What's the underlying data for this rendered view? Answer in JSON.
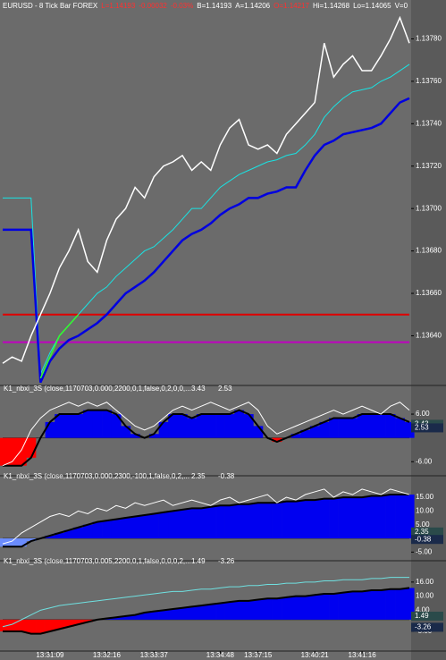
{
  "chart_data": [
    {
      "type": "line",
      "header": [
        {
          "text": "EURUSD - 8 Tick Bar  FOREX",
          "color": "#ffffff"
        },
        {
          "text": "L=1.14193",
          "color": "#ff3030"
        },
        {
          "text": "-0.00032",
          "color": "#ff3030"
        },
        {
          "text": "-0.03%",
          "color": "#ff3030"
        },
        {
          "text": "B=1.14193",
          "color": "#ffffff"
        },
        {
          "text": "A=1.14206",
          "color": "#ffffff"
        },
        {
          "text": "O=1.14217",
          "color": "#ff3030"
        },
        {
          "text": "Hi=1.14268",
          "color": "#ffffff"
        },
        {
          "text": "Lo=1.14065",
          "color": "#ffffff"
        },
        {
          "text": "V=0",
          "color": "#ffffff"
        }
      ],
      "xlim": [
        0,
        43
      ],
      "ylim": [
        1.13617,
        1.13792
      ],
      "yticks": [
        {
          "value": 1.1378,
          "label": "1.13780"
        },
        {
          "value": 1.1376,
          "label": "1.13760"
        },
        {
          "value": 1.1374,
          "label": "1.13740"
        },
        {
          "value": 1.1372,
          "label": "1.13720"
        },
        {
          "value": 1.137,
          "label": "1.13700"
        },
        {
          "value": 1.1368,
          "label": "1.13680"
        },
        {
          "value": 1.1366,
          "label": "1.13660"
        },
        {
          "value": 1.1364,
          "label": "1.13640"
        }
      ],
      "hlines": [
        {
          "value": 1.1365,
          "color": "#e00000"
        },
        {
          "value": 1.13637,
          "color": "#c000c0"
        }
      ],
      "series": [
        {
          "color": "#19e3e3",
          "width": 1,
          "values": [
            1.13705,
            1.13705,
            1.13705,
            1.13705,
            1.13622,
            1.13632,
            1.1364,
            1.13645,
            1.1365,
            1.13655,
            1.1366,
            1.13663,
            1.13668,
            1.13672,
            1.13676,
            1.1368,
            1.13682,
            1.13686,
            1.1369,
            1.13695,
            1.137,
            1.137,
            1.13705,
            1.1371,
            1.13713,
            1.13716,
            1.13718,
            1.1372,
            1.13722,
            1.13723,
            1.13725,
            1.13726,
            1.1373,
            1.13735,
            1.13743,
            1.13748,
            1.13752,
            1.13755,
            1.13756,
            1.13757,
            1.1376,
            1.13762,
            1.13765,
            1.13768
          ]
        },
        {
          "color": "#0000e0",
          "width": 2.5,
          "values": [
            1.1369,
            1.1369,
            1.1369,
            1.1369,
            1.13618,
            1.13628,
            1.13634,
            1.13638,
            1.1364,
            1.13643,
            1.13646,
            1.1365,
            1.13655,
            1.1366,
            1.13663,
            1.13666,
            1.1367,
            1.13675,
            1.1368,
            1.13685,
            1.13688,
            1.1369,
            1.13693,
            1.13697,
            1.137,
            1.13702,
            1.13705,
            1.13705,
            1.13707,
            1.13708,
            1.1371,
            1.1371,
            1.13718,
            1.13725,
            1.1373,
            1.13732,
            1.13735,
            1.13736,
            1.13737,
            1.13738,
            1.1374,
            1.13745,
            1.1375,
            1.13752
          ]
        },
        {
          "color": "#30ff30",
          "width": 1.5,
          "values": [
            null,
            null,
            null,
            null,
            1.1362,
            1.1363,
            1.1364,
            1.13645,
            1.1365,
            null,
            null,
            null,
            null,
            null,
            null,
            null,
            null,
            null,
            null,
            null,
            null,
            null,
            null,
            null,
            null,
            null,
            null,
            null,
            null,
            null,
            null,
            null,
            null,
            null,
            null,
            null,
            null,
            null,
            null,
            null,
            null,
            null,
            null,
            null
          ]
        },
        {
          "color": "#ffffff",
          "width": 1.5,
          "values": [
            1.13627,
            1.1363,
            1.13628,
            1.1364,
            1.1365,
            1.1366,
            1.13672,
            1.1368,
            1.1369,
            1.13675,
            1.1367,
            1.13685,
            1.13695,
            1.137,
            1.1371,
            1.13705,
            1.13715,
            1.1372,
            1.13722,
            1.13725,
            1.13718,
            1.13722,
            1.13718,
            1.1373,
            1.13738,
            1.13742,
            1.1373,
            1.13728,
            1.1373,
            1.13726,
            1.13735,
            1.1374,
            1.13745,
            1.1375,
            1.13778,
            1.13762,
            1.13768,
            1.13772,
            1.13765,
            1.13765,
            1.13772,
            1.1378,
            1.1379,
            1.13778
          ]
        }
      ]
    },
    {
      "type": "area",
      "title": "K1_nbxi_3S (close,1170703,0.000,2200,0,1,false,0,2,0,0,...",
      "readout": [
        3.43,
        2.53
      ],
      "xlim": [
        0,
        43
      ],
      "ylim": [
        -9.1,
        11.2
      ],
      "yticks": [
        {
          "value": 6,
          "label": "6.00"
        },
        {
          "value": -6,
          "label": "-6.00"
        }
      ],
      "series": [
        {
          "color": "#0000f0",
          "neg_color": "#ff0000",
          "stroke": "#000000",
          "values": [
            -7,
            -7,
            -7,
            -5,
            0,
            4,
            6,
            6,
            6,
            7,
            7,
            7,
            6,
            3,
            1,
            0,
            1,
            4,
            6,
            6,
            5,
            6,
            6,
            6,
            6,
            7,
            6,
            3,
            0,
            -1,
            0,
            1,
            2,
            3,
            4,
            5,
            5,
            5,
            6,
            6,
            6,
            6,
            5,
            4
          ]
        },
        {
          "color": "#ffffff",
          "values": [
            -7,
            -6,
            -3,
            2,
            5,
            7,
            8,
            9,
            8,
            9,
            8,
            9,
            7,
            5,
            3,
            2,
            3,
            5,
            7,
            8,
            7,
            8,
            9,
            8,
            7,
            8,
            9,
            7,
            3,
            1,
            2,
            3,
            4,
            5,
            6,
            7,
            6,
            7,
            8,
            7,
            6,
            8,
            9,
            7
          ]
        }
      ]
    },
    {
      "type": "area",
      "title": "K1_nbxi_3S (close,1170703,0.000,2300,-100,1,false,0,2,...",
      "readout": [
        2.35,
        -0.38
      ],
      "xlim": [
        0,
        43
      ],
      "ylim": [
        -7.5,
        20.9
      ],
      "yticks": [
        {
          "value": 15,
          "label": "15.00"
        },
        {
          "value": 10,
          "label": "10.00"
        },
        {
          "value": 5,
          "label": "5.00"
        },
        {
          "value": -5,
          "label": "-5.00"
        }
      ],
      "series": [
        {
          "color": "#0000f0",
          "neg_color": "#6b8cff",
          "stroke": "#000000",
          "values": [
            -3,
            -3,
            -3,
            -1,
            0,
            1,
            2,
            3,
            4,
            5,
            6,
            6.5,
            7,
            7.5,
            8,
            8.5,
            9,
            9.5,
            10,
            10.5,
            11,
            11,
            11.5,
            12,
            12,
            12.5,
            12.5,
            13,
            13,
            13,
            13.5,
            13.5,
            14,
            14,
            14.5,
            14.5,
            15,
            15,
            15,
            15.5,
            15.5,
            16,
            16,
            16
          ]
        },
        {
          "color": "#ffffff",
          "values": [
            -2,
            -1,
            2,
            4,
            6,
            8,
            9,
            8,
            10,
            9,
            11,
            10,
            12,
            11,
            13,
            12,
            13,
            14,
            12,
            13,
            14,
            13,
            12,
            14,
            15,
            13,
            14,
            15,
            16,
            13,
            15,
            14,
            16,
            17,
            18,
            15,
            17,
            16,
            18,
            17,
            16,
            18,
            17,
            16
          ]
        }
      ]
    },
    {
      "type": "area",
      "title": "K1_nbxi_3S (close,1170703,0.005,2200,0,1,false,0,0,0,2,...",
      "readout": [
        1.49,
        -3.26
      ],
      "xlim": [
        0,
        43
      ],
      "ylim": [
        -13,
        22.8
      ],
      "yticks": [
        {
          "value": 16,
          "label": "16.00"
        },
        {
          "value": 10,
          "label": "10.00"
        },
        {
          "value": 4,
          "label": "4.00"
        },
        {
          "value": -5,
          "label": "-5.00"
        }
      ],
      "xticks": [
        {
          "value": 5,
          "label": "13:31:09"
        },
        {
          "value": 11,
          "label": "13:32:16"
        },
        {
          "value": 16,
          "label": "13:33:37"
        },
        {
          "value": 23,
          "label": "13:34:48"
        },
        {
          "value": 27,
          "label": "13:37:15"
        },
        {
          "value": 33,
          "label": "13:40:21"
        },
        {
          "value": 38,
          "label": "13:41:16"
        }
      ],
      "series": [
        {
          "color": "#0000f0",
          "neg_color": "#ff0000",
          "stroke": "#000000",
          "values": [
            -5,
            -5,
            -5,
            -6,
            -6,
            -5,
            -4,
            -3,
            -2,
            -1,
            0,
            0.5,
            1,
            1.5,
            2,
            3,
            3.5,
            4,
            4.5,
            5,
            5.5,
            6,
            6.5,
            7,
            7.5,
            8,
            8,
            8.5,
            9,
            9,
            9.5,
            10,
            10,
            10.5,
            11,
            11,
            11.5,
            12,
            12,
            12.5,
            12.5,
            13,
            13,
            13.5
          ]
        },
        {
          "color": "#6fe0e0",
          "values": [
            -3,
            -2,
            0,
            2,
            4,
            5,
            6,
            6.5,
            7,
            7.5,
            8,
            8.5,
            9,
            9.5,
            10,
            10.5,
            11,
            11.5,
            12,
            12,
            12.5,
            13,
            13,
            13.5,
            14,
            14,
            14.5,
            14.5,
            15,
            15,
            15.5,
            15.5,
            16,
            16,
            16.5,
            16.5,
            17,
            17,
            17,
            17.5,
            17.5,
            18,
            18,
            18
          ]
        }
      ]
    }
  ]
}
